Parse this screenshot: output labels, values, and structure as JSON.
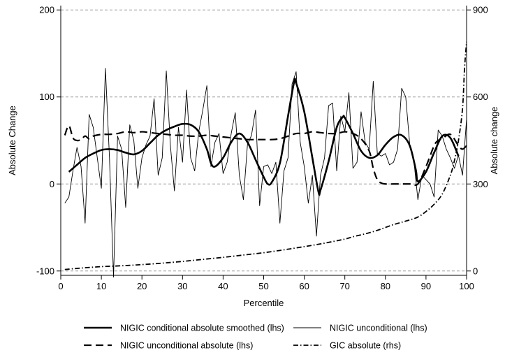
{
  "chart_data": {
    "type": "line",
    "title": "",
    "xlabel": "Percentile",
    "ylabel_left": "Absolute Change",
    "ylabel_right": "Absolute change",
    "xlim": [
      0,
      100
    ],
    "ylim_left": [
      -105,
      205
    ],
    "ylim_right": [
      -15,
      915
    ],
    "x_ticks": [
      "0",
      "10",
      "20",
      "30",
      "40",
      "50",
      "60",
      "70",
      "80",
      "90",
      "100"
    ],
    "y_left_ticks": [
      "200",
      "100",
      "0",
      "-100"
    ],
    "y_right_ticks": [
      "900",
      "600",
      "300",
      "0"
    ],
    "grid": "horizontal dashed at left-axis ticks",
    "legend_position": "bottom",
    "legend": [
      {
        "label": "NIGIC conditional absolute smoothed (lhs)",
        "style": "thick-solid"
      },
      {
        "label": "NIGIC unconditional (lhs)",
        "style": "thin-solid"
      },
      {
        "label": "NIGIC unconditional absolute (lhs)",
        "style": "dashed"
      },
      {
        "label": "GIC absolute (rhs)",
        "style": "dash-dot"
      }
    ],
    "series": [
      {
        "name": "NIGIC conditional absolute smoothed (lhs)",
        "axis": "left",
        "style": "thick-solid",
        "x": [
          2,
          4,
          6,
          8,
          10,
          12,
          14,
          16,
          18,
          20,
          22,
          24,
          26,
          28,
          30,
          32,
          34,
          36,
          37,
          38,
          40,
          42,
          44,
          46,
          48,
          50,
          51,
          52,
          54,
          56,
          57.5,
          58,
          60,
          62,
          63.5,
          64,
          66,
          68,
          69.5,
          70,
          72,
          74,
          76,
          78,
          80,
          82,
          84,
          86,
          87.5,
          88,
          90,
          92,
          94,
          96,
          98
        ],
        "y": [
          14,
          22,
          30,
          35,
          39,
          40,
          39,
          36,
          34,
          38,
          47,
          56,
          62,
          66,
          69,
          68,
          60,
          40,
          24,
          20,
          30,
          48,
          58,
          48,
          28,
          8,
          0,
          2,
          24,
          78,
          117,
          116,
          83,
          30,
          -9,
          -7,
          26,
          65,
          77,
          76,
          58,
          38,
          30,
          33,
          45,
          54,
          56,
          44,
          16,
          3,
          14,
          36,
          55,
          53,
          32
        ]
      },
      {
        "name": "NIGIC unconditional (lhs)",
        "axis": "left",
        "style": "thin-solid",
        "x": [
          1,
          2,
          3,
          4,
          5,
          6,
          7,
          8,
          9,
          10,
          11,
          12,
          13,
          14,
          15,
          16,
          17,
          18,
          19,
          20,
          21,
          22,
          23,
          24,
          25,
          26,
          27,
          28,
          29,
          30,
          31,
          32,
          33,
          34,
          35,
          36,
          37,
          38,
          39,
          40,
          41,
          42,
          43,
          44,
          45,
          46,
          47,
          48,
          49,
          50,
          51,
          52,
          53,
          54,
          55,
          56,
          57,
          58,
          59,
          60,
          61,
          62,
          63,
          64,
          65,
          66,
          67,
          68,
          69,
          70,
          71,
          72,
          73,
          74,
          75,
          76,
          77,
          78,
          79,
          80,
          81,
          82,
          83,
          84,
          85,
          86,
          87,
          88,
          89,
          90,
          91,
          92,
          93,
          94,
          95,
          96,
          97,
          98,
          99,
          100
        ],
        "y": [
          -22,
          -15,
          15,
          42,
          20,
          -45,
          80,
          65,
          30,
          -5,
          133,
          30,
          -107,
          55,
          40,
          -27,
          68,
          50,
          -5,
          30,
          45,
          55,
          98,
          10,
          30,
          130,
          45,
          -8,
          65,
          25,
          108,
          30,
          15,
          60,
          85,
          113,
          20,
          48,
          58,
          12,
          25,
          58,
          82,
          10,
          -18,
          45,
          56,
          85,
          -25,
          20,
          22,
          12,
          25,
          -45,
          15,
          30,
          115,
          129,
          48,
          20,
          -22,
          10,
          -60,
          10,
          30,
          90,
          93,
          15,
          78,
          60,
          105,
          18,
          25,
          83,
          48,
          40,
          118,
          35,
          32,
          35,
          22,
          25,
          40,
          110,
          100,
          45,
          27,
          -18,
          10,
          5,
          0,
          -15,
          62,
          55,
          40,
          30,
          18,
          33,
          10,
          75
        ]
      },
      {
        "name": "NIGIC unconditional absolute (lhs)",
        "axis": "left",
        "style": "dashed",
        "x": [
          1,
          2,
          3,
          4,
          5,
          6,
          7,
          8,
          10,
          12,
          14,
          16,
          18,
          20,
          22,
          24,
          26,
          28,
          30,
          32,
          34,
          36,
          38,
          40,
          42,
          44,
          46,
          48,
          50,
          52,
          54,
          56,
          58,
          60,
          62,
          64,
          66,
          68,
          70,
          72,
          74,
          76,
          77,
          78,
          79,
          80,
          82,
          84,
          86,
          88,
          90,
          92,
          93,
          94,
          96,
          98,
          99,
          100
        ],
        "y": [
          56,
          67,
          53,
          50,
          51,
          55,
          52,
          55,
          57,
          57,
          58,
          60,
          59,
          60,
          59,
          58,
          57,
          56,
          56,
          55,
          55,
          56,
          55,
          54,
          53,
          52,
          51,
          51,
          51,
          51,
          52,
          55,
          58,
          58,
          60,
          59,
          58,
          58,
          60,
          58,
          52,
          38,
          18,
          5,
          1,
          0,
          0,
          0,
          0,
          0,
          20,
          44,
          50,
          52,
          57,
          44,
          40,
          44
        ]
      },
      {
        "name": "GIC absolute (rhs)",
        "axis": "right",
        "style": "dash-dot",
        "x": [
          1,
          5,
          10,
          15,
          20,
          25,
          30,
          35,
          40,
          45,
          50,
          55,
          60,
          65,
          70,
          72,
          75,
          78,
          80,
          82,
          84,
          86,
          88,
          90,
          92,
          94,
          96,
          97,
          98,
          99,
          99.5,
          100
        ],
        "y": [
          5,
          10,
          15,
          18,
          22,
          27,
          33,
          40,
          47,
          55,
          63,
          73,
          84,
          96,
          110,
          118,
          128,
          140,
          150,
          160,
          168,
          176,
          186,
          205,
          230,
          265,
          330,
          380,
          450,
          560,
          700,
          790
        ]
      }
    ]
  }
}
